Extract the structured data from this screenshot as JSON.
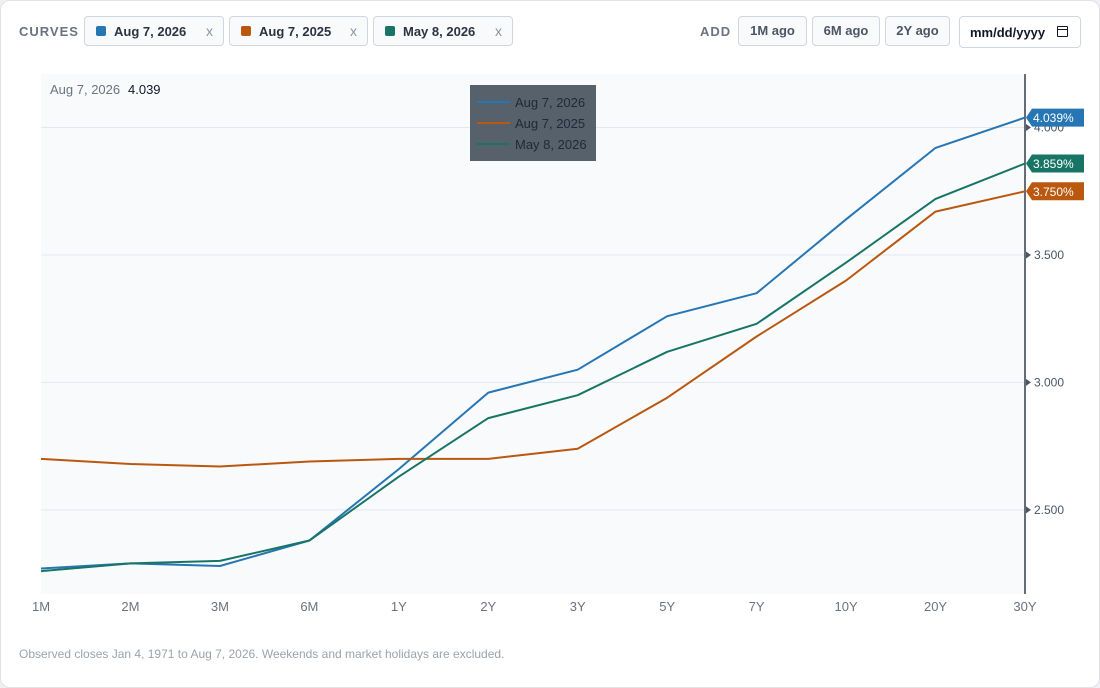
{
  "toolbar": {
    "curves_label": "CURVES",
    "chips": [
      {
        "label": "Aug 7, 2026",
        "color": "#2776b4",
        "close": "x"
      },
      {
        "label": "Aug 7, 2025",
        "color": "#b9580e",
        "close": "x"
      },
      {
        "label": "May 8, 2026",
        "color": "#187566",
        "close": "x"
      }
    ],
    "add_label": "ADD",
    "buttons": [
      "1M ago",
      "6M ago",
      "2Y ago"
    ],
    "date_placeholder": "mm/dd/yyyy"
  },
  "hover": {
    "label": "Aug 7, 2026",
    "value": "4.039"
  },
  "footnote": "Observed closes Jan 4, 1971 to Aug 7, 2026. Weekends and market holidays are excluded.",
  "chart_data": {
    "type": "line",
    "categories": [
      "1M",
      "2M",
      "3M",
      "6M",
      "1Y",
      "2Y",
      "3Y",
      "5Y",
      "7Y",
      "10Y",
      "20Y",
      "30Y"
    ],
    "y_ticks": [
      "2.500",
      "3.000",
      "3.500",
      "4.000"
    ],
    "ylim": [
      2.17,
      4.21
    ],
    "y_axis_position": "right",
    "grid": true,
    "legend_position": "top-center",
    "series": [
      {
        "name": "Aug 7, 2026",
        "color": "#2776b4",
        "end_label": "4.039%",
        "values": [
          2.27,
          2.29,
          2.28,
          2.38,
          2.66,
          2.96,
          3.05,
          3.26,
          3.35,
          3.64,
          3.92,
          4.039
        ]
      },
      {
        "name": "Aug 7, 2025",
        "color": "#b9580e",
        "end_label": "3.750%",
        "values": [
          2.7,
          2.68,
          2.67,
          2.69,
          2.7,
          2.7,
          2.74,
          2.94,
          3.18,
          3.4,
          3.67,
          3.75
        ]
      },
      {
        "name": "May 8, 2026",
        "color": "#187566",
        "end_label": "3.859%",
        "values": [
          2.26,
          2.29,
          2.3,
          2.38,
          2.63,
          2.86,
          2.95,
          3.12,
          3.23,
          3.47,
          3.72,
          3.859
        ]
      }
    ]
  }
}
